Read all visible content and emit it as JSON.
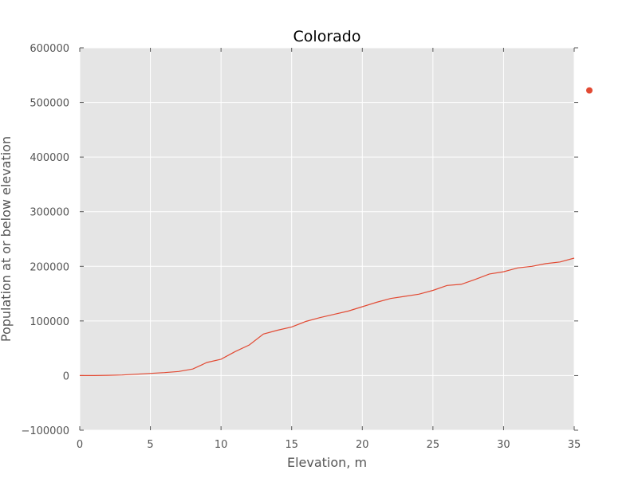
{
  "chart_data": {
    "type": "line",
    "title": "Colorado",
    "xlabel": "Elevation, m",
    "ylabel": "Population at or below elevation",
    "xlim": [
      0,
      35
    ],
    "ylim": [
      -100000,
      600000
    ],
    "x_ticks": [
      0,
      5,
      10,
      15,
      20,
      25,
      30,
      35
    ],
    "y_ticks": [
      -100000,
      0,
      100000,
      200000,
      300000,
      400000,
      500000,
      600000
    ],
    "x_tick_labels": [
      "0",
      "5",
      "10",
      "15",
      "20",
      "25",
      "30",
      "35"
    ],
    "y_tick_labels": [
      "−100000",
      "0",
      "100000",
      "200000",
      "300000",
      "400000",
      "500000",
      "600000"
    ],
    "grid": true,
    "series": [
      {
        "color": "#e24a33",
        "x": [
          0,
          1,
          2,
          3,
          4,
          5,
          6,
          7,
          8,
          9,
          10,
          11,
          12,
          13,
          14,
          15,
          16,
          17,
          18,
          19,
          20,
          21,
          22,
          23,
          24,
          25,
          26,
          27,
          28,
          29,
          30,
          31,
          32,
          33,
          34,
          35
        ],
        "y": [
          0,
          0,
          500,
          1000,
          2500,
          4000,
          5500,
          7500,
          12000,
          24000,
          30000,
          44000,
          56000,
          76000,
          83000,
          89000,
          99000,
          106000,
          112000,
          118000,
          126000,
          134000,
          141000,
          145000,
          149000,
          156000,
          165000,
          167000,
          176000,
          186000,
          190000,
          197000,
          200000,
          205000,
          208000,
          215000
        ]
      }
    ],
    "outlier_point": {
      "x": 36,
      "y": 522000,
      "color": "#e24a33"
    }
  }
}
